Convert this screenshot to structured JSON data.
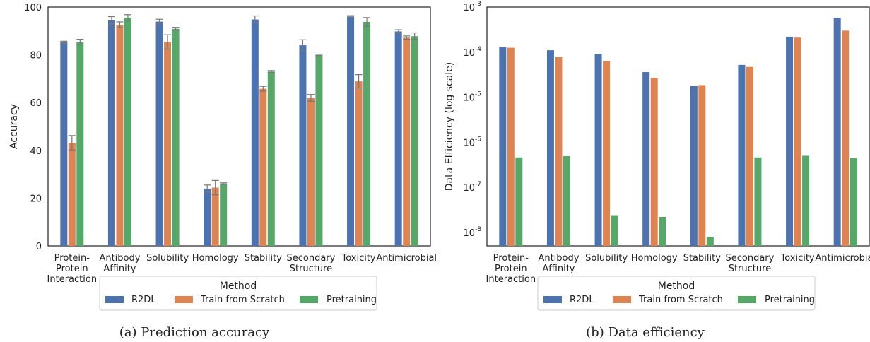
{
  "colors": {
    "r2dl": "#4c72b0",
    "scratch": "#dd8452",
    "pretraining": "#55a868",
    "error_bar": "#777777"
  },
  "chart_data": [
    {
      "type": "bar",
      "caption": "(a) Prediction accuracy",
      "ylabel": "Accuracy",
      "ylim": [
        0,
        100
      ],
      "yticks": [
        "0",
        "20",
        "40",
        "60",
        "80",
        "100"
      ],
      "categories": [
        [
          "Protein-",
          "Protein",
          "Interaction"
        ],
        [
          "Antibody",
          "Affinity"
        ],
        [
          "Solubility"
        ],
        [
          "Homology"
        ],
        [
          "Stability"
        ],
        [
          "Secondary",
          "Structure"
        ],
        [
          "Toxicity"
        ],
        [
          "Antimicrobial"
        ]
      ],
      "series": [
        {
          "name": "R2DL",
          "values": [
            85.2,
            94.5,
            93.9,
            24.0,
            94.8,
            84.0,
            96.1,
            89.8
          ],
          "errors": [
            0.5,
            1.5,
            1.0,
            1.5,
            1.5,
            2.3,
            0.3,
            0.7
          ]
        },
        {
          "name": "Train from Scratch",
          "values": [
            43.2,
            92.6,
            85.4,
            24.4,
            65.8,
            62.0,
            68.9,
            87.2
          ],
          "errors": [
            3.0,
            1.2,
            3.0,
            3.0,
            1.0,
            1.4,
            2.8,
            0.7
          ]
        },
        {
          "name": "Pretraining",
          "values": [
            85.3,
            95.6,
            90.9,
            26.1,
            73.0,
            80.0,
            93.8,
            87.8
          ],
          "errors": [
            1.2,
            1.2,
            0.6,
            0.3,
            0.4,
            0.3,
            1.8,
            1.4
          ]
        }
      ],
      "legend": {
        "title": "Method",
        "placement": "bottom"
      }
    },
    {
      "type": "bar",
      "caption": "(b) Data efficiency",
      "ylabel": "Data Efficiency (log scale)",
      "yscale": "log",
      "ylim": [
        5e-09,
        0.001
      ],
      "yticks": [
        {
          "base": "10",
          "exp": "-8",
          "value": 1e-08
        },
        {
          "base": "10",
          "exp": "-7",
          "value": 1e-07
        },
        {
          "base": "10",
          "exp": "-6",
          "value": 1e-06
        },
        {
          "base": "10",
          "exp": "-5",
          "value": 1e-05
        },
        {
          "base": "10",
          "exp": "-4",
          "value": 0.0001
        },
        {
          "base": "10",
          "exp": "-3",
          "value": 0.001
        }
      ],
      "categories": [
        [
          "Protein-",
          "Protein",
          "Interaction"
        ],
        [
          "Antibody",
          "Affinity"
        ],
        [
          "Solubility"
        ],
        [
          "Homology"
        ],
        [
          "Stability"
        ],
        [
          "Secondary",
          "Structure"
        ],
        [
          "Toxicity"
        ],
        [
          "Antimicrobial"
        ]
      ],
      "series": [
        {
          "name": "R2DL",
          "values": [
            0.00013,
            0.00011,
            9e-05,
            3.6e-05,
            1.8e-05,
            5.2e-05,
            0.00022,
            0.00058
          ]
        },
        {
          "name": "Train from Scratch",
          "values": [
            0.000125,
            7.7e-05,
            6.3e-05,
            2.7e-05,
            1.85e-05,
            4.7e-05,
            0.00021,
            0.0003
          ]
        },
        {
          "name": "Pretraining",
          "values": [
            4.6e-07,
            4.9e-07,
            2.4e-08,
            2.2e-08,
            8e-09,
            4.6e-07,
            5e-07,
            4.4e-07
          ]
        }
      ],
      "legend": {
        "title": "Method",
        "placement": "bottom"
      }
    }
  ]
}
